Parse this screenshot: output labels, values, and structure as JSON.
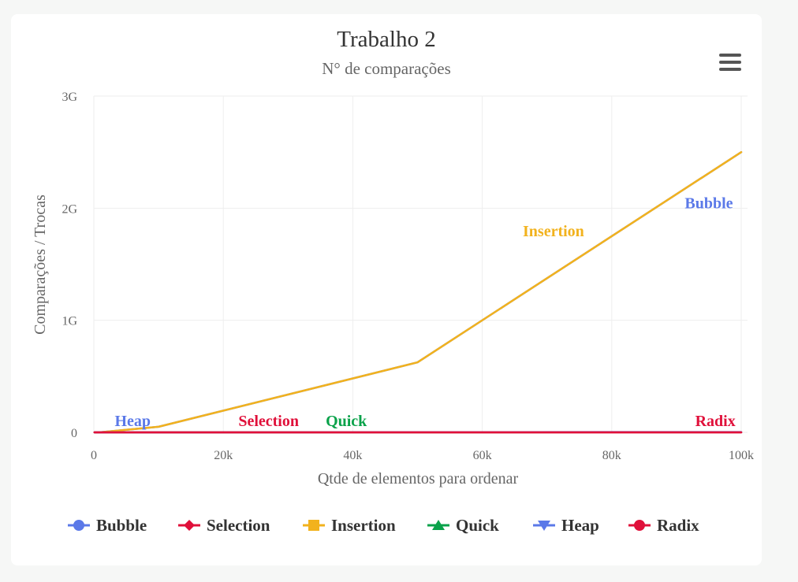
{
  "chart_data": {
    "type": "line",
    "title": "Trabalho 2",
    "subtitle": "N° de comparações",
    "xlabel": "Qtde de elementos para ordenar",
    "ylabel": "Comparações / Trocas",
    "xlim": [
      0,
      100000
    ],
    "ylim": [
      0,
      3000000000
    ],
    "x_ticks": [
      "0",
      "20k",
      "40k",
      "60k",
      "80k",
      "100k"
    ],
    "y_ticks": [
      "0",
      "1G",
      "2G",
      "3G"
    ],
    "grid": true,
    "legend_position": "bottom",
    "series": [
      {
        "name": "Bubble",
        "color": "#5b79e8",
        "marker": "circle",
        "x": [
          100,
          1000,
          10000,
          50000,
          100000
        ],
        "y": [
          4950,
          499500,
          49995000,
          624975000,
          2500000000
        ]
      },
      {
        "name": "Selection",
        "color": "#e0103a",
        "marker": "diamond",
        "x": [
          100,
          1000,
          10000,
          50000,
          100000
        ],
        "y": [
          99,
          999,
          9999,
          49999,
          99999
        ]
      },
      {
        "name": "Insertion",
        "color": "#f2b21d",
        "marker": "square",
        "x": [
          100,
          1000,
          10000,
          50000,
          100000
        ],
        "y": [
          4950,
          499500,
          49995000,
          624975000,
          2500000000
        ]
      },
      {
        "name": "Quick",
        "color": "#0aa24a",
        "marker": "triangle",
        "x": [
          100,
          1000,
          10000,
          50000,
          100000
        ],
        "y": [
          700,
          10000,
          150000,
          900000,
          2000000
        ]
      },
      {
        "name": "Heap",
        "color": "#5b79e8",
        "marker": "triangle-down",
        "x": [
          100,
          1000,
          10000,
          50000,
          100000
        ],
        "y": [
          1000,
          17000,
          240000,
          1400000,
          3000000
        ]
      },
      {
        "name": "Radix",
        "color": "#e0103a",
        "marker": "circle",
        "x": [
          100,
          1000,
          10000,
          50000,
          100000
        ],
        "y": [
          0,
          0,
          0,
          0,
          0
        ]
      }
    ],
    "annotations": [
      {
        "text": "Heap",
        "color": "#5b79e8",
        "x": 6000,
        "y": 0
      },
      {
        "text": "Selection",
        "color": "#e0103a",
        "x": 27000,
        "y": 0
      },
      {
        "text": "Quick",
        "color": "#0aa24a",
        "x": 39000,
        "y": 0
      },
      {
        "text": "Radix",
        "color": "#e0103a",
        "x": 96000,
        "y": 0
      },
      {
        "text": "Insertion",
        "color": "#f2b21d",
        "x": 71000,
        "y": 1750000000
      },
      {
        "text": "Bubble",
        "color": "#5b79e8",
        "x": 95000,
        "y": 2000000000
      }
    ]
  },
  "menu": {
    "icon": "hamburger-menu-icon"
  }
}
